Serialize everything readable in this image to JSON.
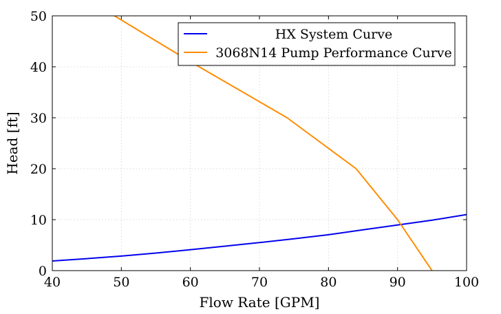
{
  "chart_data": {
    "type": "line",
    "xlabel": "Flow Rate [GPM]",
    "ylabel": "Head [ft]",
    "xlim": [
      40,
      100
    ],
    "ylim": [
      0,
      50
    ],
    "xticks": [
      40,
      50,
      60,
      70,
      80,
      90,
      100
    ],
    "yticks": [
      0,
      10,
      20,
      30,
      40,
      50
    ],
    "grid": true,
    "legend_position": "top-right",
    "series": [
      {
        "name": "HX System Curve",
        "color": "#0000ee",
        "x": [
          40,
          45,
          50,
          55,
          60,
          65,
          70,
          75,
          80,
          85,
          90,
          95,
          100
        ],
        "y": [
          1.9,
          2.35,
          2.85,
          3.45,
          4.1,
          4.8,
          5.5,
          6.25,
          7.05,
          8.0,
          8.95,
          9.9,
          11.0
        ]
      },
      {
        "name": "3068N14 Pump Performance Curve",
        "color": "#ff8c00",
        "x": [
          49,
          60,
          74,
          84,
          90,
          95
        ],
        "y": [
          50,
          41,
          30,
          20,
          10,
          0
        ]
      }
    ]
  }
}
